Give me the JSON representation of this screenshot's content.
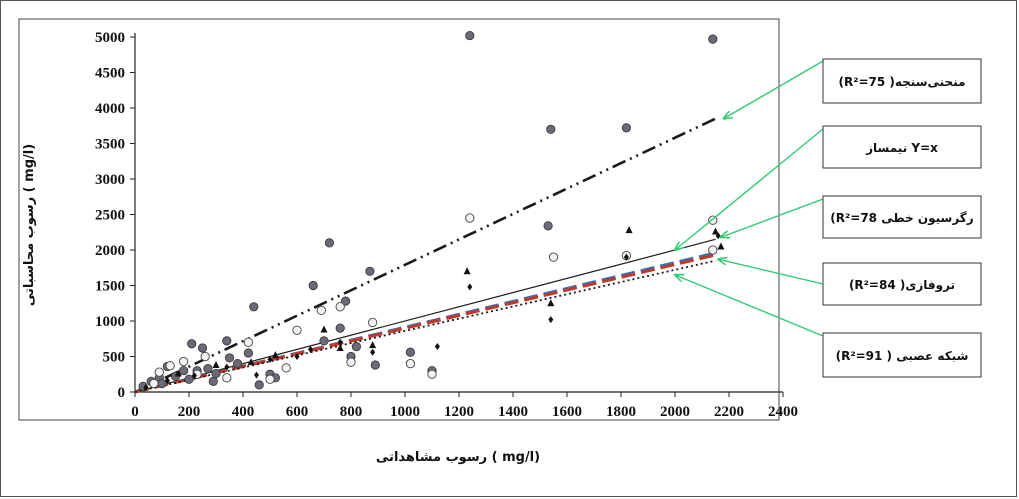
{
  "chart_data": {
    "type": "scatter",
    "xlabel": "رسوب مشاهداتی ( mg/l)",
    "ylabel": "رسوب محاسباتی ( mg/l)",
    "xlim": [
      0,
      2400
    ],
    "ylim": [
      0,
      5000
    ],
    "xticks": [
      "0",
      "200",
      "400",
      "600",
      "800",
      "1000",
      "1200",
      "1400",
      "1600",
      "1800",
      "2000",
      "2200",
      "2400"
    ],
    "yticks": [
      "0",
      "500",
      "1000",
      "1500",
      "2000",
      "2500",
      "3000",
      "3500",
      "4000",
      "4500",
      "5000"
    ],
    "grid": false,
    "legend_position": "right",
    "legend": [
      {
        "label": "(R²=75 )منحنی‌سنجه",
        "target": [
          2180,
          3850
        ]
      },
      {
        "label": "نیمساز Y=x",
        "target": [
          2000,
          2000
        ]
      },
      {
        "label": "(R²=78 رگرسیون خطی",
        "target": [
          2170,
          2180
        ]
      },
      {
        "label": "(R²=84 )تروفازی",
        "target": [
          2160,
          1870
        ]
      },
      {
        "label": "(R²=91 ) شبکه عصبی",
        "target": [
          2000,
          1650
        ]
      }
    ],
    "series": [
      {
        "style": "dash-dot-dot",
        "color": "#1a1a1a",
        "line": [
          [
            0,
            0
          ],
          [
            2150,
            3850
          ]
        ]
      },
      {
        "style": "solid",
        "color": "#1a1a1a",
        "line": [
          [
            0,
            0
          ],
          [
            2150,
            2150
          ]
        ]
      },
      {
        "style": "dashed",
        "color": "#3a6fb0",
        "line": [
          [
            0,
            0
          ],
          [
            2150,
            1960
          ]
        ]
      },
      {
        "style": "dashed",
        "color": "#c0392b",
        "line": [
          [
            0,
            0
          ],
          [
            2150,
            1930
          ]
        ]
      },
      {
        "style": "dotted",
        "color": "#1a1a1a",
        "line": [
          [
            0,
            0
          ],
          [
            2150,
            1850
          ]
        ]
      }
    ],
    "points": {
      "dark_circles": [
        [
          1240,
          5020
        ],
        [
          2140,
          4970
        ],
        [
          1540,
          3700
        ],
        [
          1820,
          3720
        ],
        [
          720,
          2100
        ],
        [
          1530,
          2340
        ],
        [
          660,
          1500
        ],
        [
          870,
          1700
        ],
        [
          780,
          1280
        ],
        [
          440,
          1200
        ],
        [
          760,
          900
        ],
        [
          340,
          720
        ],
        [
          250,
          620
        ],
        [
          210,
          680
        ],
        [
          120,
          360
        ],
        [
          180,
          300
        ],
        [
          300,
          260
        ],
        [
          350,
          480
        ],
        [
          420,
          550
        ],
        [
          500,
          250
        ],
        [
          800,
          500
        ],
        [
          1020,
          560
        ],
        [
          1100,
          300
        ],
        [
          890,
          380
        ],
        [
          60,
          150
        ],
        [
          90,
          200
        ],
        [
          150,
          220
        ],
        [
          230,
          300
        ],
        [
          290,
          150
        ],
        [
          380,
          400
        ],
        [
          460,
          100
        ],
        [
          520,
          200
        ],
        [
          700,
          720
        ],
        [
          820,
          640
        ],
        [
          30,
          80
        ],
        [
          100,
          120
        ],
        [
          200,
          180
        ],
        [
          270,
          330
        ]
      ],
      "open_circles": [
        [
          1240,
          2450
        ],
        [
          2140,
          2420
        ],
        [
          1550,
          1900
        ],
        [
          1820,
          1920
        ],
        [
          760,
          1200
        ],
        [
          690,
          1150
        ],
        [
          880,
          980
        ],
        [
          600,
          870
        ],
        [
          420,
          700
        ],
        [
          260,
          500
        ],
        [
          180,
          430
        ],
        [
          130,
          370
        ],
        [
          90,
          280
        ],
        [
          1020,
          400
        ],
        [
          1100,
          250
        ],
        [
          800,
          420
        ],
        [
          560,
          340
        ],
        [
          500,
          180
        ],
        [
          340,
          200
        ],
        [
          230,
          250
        ],
        [
          70,
          120
        ],
        [
          2140,
          2000
        ]
      ],
      "triangles": [
        [
          1230,
          1700
        ],
        [
          1830,
          2280
        ],
        [
          2150,
          2260
        ],
        [
          1540,
          1250
        ],
        [
          880,
          660
        ],
        [
          700,
          880
        ],
        [
          430,
          420
        ],
        [
          520,
          520
        ],
        [
          760,
          620
        ],
        [
          300,
          380
        ],
        [
          160,
          260
        ],
        [
          2170,
          2050
        ]
      ],
      "diamonds": [
        [
          1240,
          1480
        ],
        [
          1540,
          1020
        ],
        [
          2160,
          2200
        ],
        [
          1820,
          1900
        ],
        [
          880,
          560
        ],
        [
          1120,
          640
        ],
        [
          760,
          700
        ],
        [
          650,
          600
        ],
        [
          500,
          460
        ],
        [
          340,
          350
        ],
        [
          220,
          230
        ],
        [
          120,
          160
        ],
        [
          40,
          60
        ],
        [
          450,
          240
        ],
        [
          600,
          500
        ]
      ]
    }
  }
}
